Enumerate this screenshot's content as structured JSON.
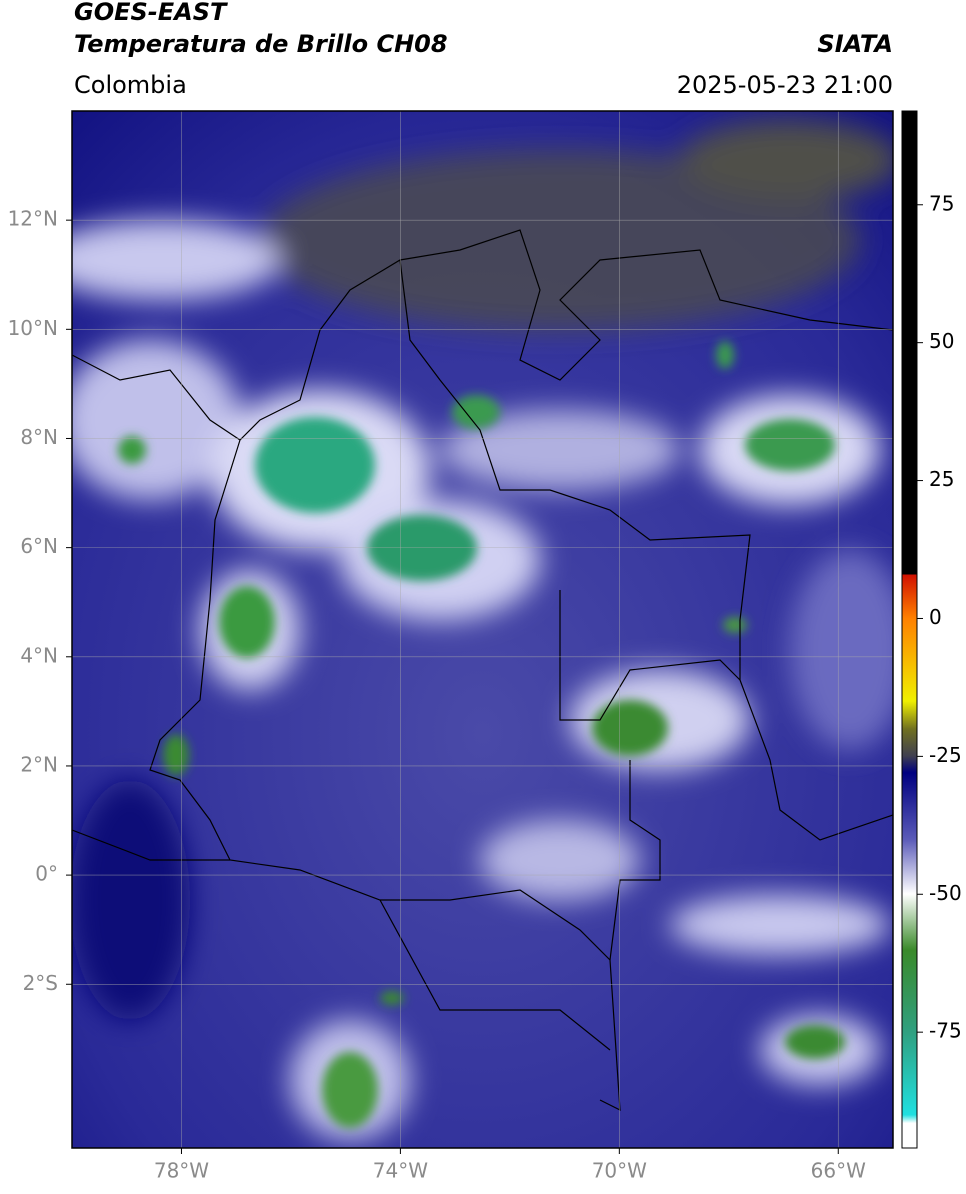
{
  "header": {
    "satellite": "GOES-EAST",
    "product": "Temperatura de Brillo CH08",
    "region": "Colombia",
    "source": "SIATA",
    "datetime": "2025-05-23 21:00"
  },
  "map": {
    "lonlim": [
      -80,
      -65
    ],
    "latlim": [
      -5,
      14
    ],
    "lonticks": [
      {
        "value": -78,
        "label": "78°W"
      },
      {
        "value": -74,
        "label": "74°W"
      },
      {
        "value": -70,
        "label": "70°W"
      },
      {
        "value": -66,
        "label": "66°W"
      }
    ],
    "latticks": [
      {
        "value": 12,
        "label": "12°N"
      },
      {
        "value": 10,
        "label": "10°N"
      },
      {
        "value": 8,
        "label": "8°N"
      },
      {
        "value": 6,
        "label": "6°N"
      },
      {
        "value": 4,
        "label": "4°N"
      },
      {
        "value": 2,
        "label": "2°N"
      },
      {
        "value": 0,
        "label": "0°"
      },
      {
        "value": -2,
        "label": "2°S"
      }
    ]
  },
  "colorbar": {
    "lim": [
      -96,
      92
    ],
    "ticks": [
      75,
      50,
      25,
      0,
      -25,
      -50,
      -75
    ]
  }
}
